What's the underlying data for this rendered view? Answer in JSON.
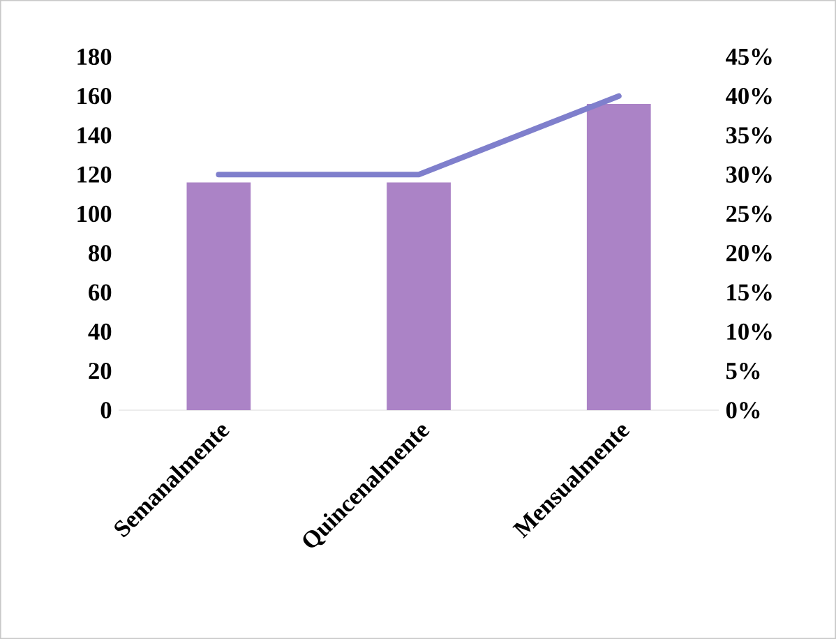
{
  "chart_data": {
    "type": "bar",
    "categories": [
      "Semanalmente",
      "Quincenalmente",
      "Mensualmente"
    ],
    "series": [
      {
        "color": "#ab83c6",
        "values": [
          116,
          116,
          156
        ]
      },
      {
        "type": "line",
        "axis": "y2",
        "color": "#7f7fcc",
        "values": [
          30,
          30,
          40
        ]
      }
    ],
    "ylim": [
      0,
      180
    ],
    "yticks": [
      0,
      20,
      40,
      60,
      80,
      100,
      120,
      140,
      160,
      180
    ],
    "y2lim": [
      0,
      45
    ],
    "y2ticks": [
      {
        "value": 0,
        "label": "0%"
      },
      {
        "value": 5,
        "label": "5%"
      },
      {
        "value": 10,
        "label": "10%"
      },
      {
        "value": 15,
        "label": "15%"
      },
      {
        "value": 20,
        "label": "20%"
      },
      {
        "value": 25,
        "label": "25%"
      },
      {
        "value": 30,
        "label": "30%"
      },
      {
        "value": 35,
        "label": "35%"
      },
      {
        "value": 40,
        "label": "40%"
      },
      {
        "value": 45,
        "label": "45%"
      }
    ]
  }
}
